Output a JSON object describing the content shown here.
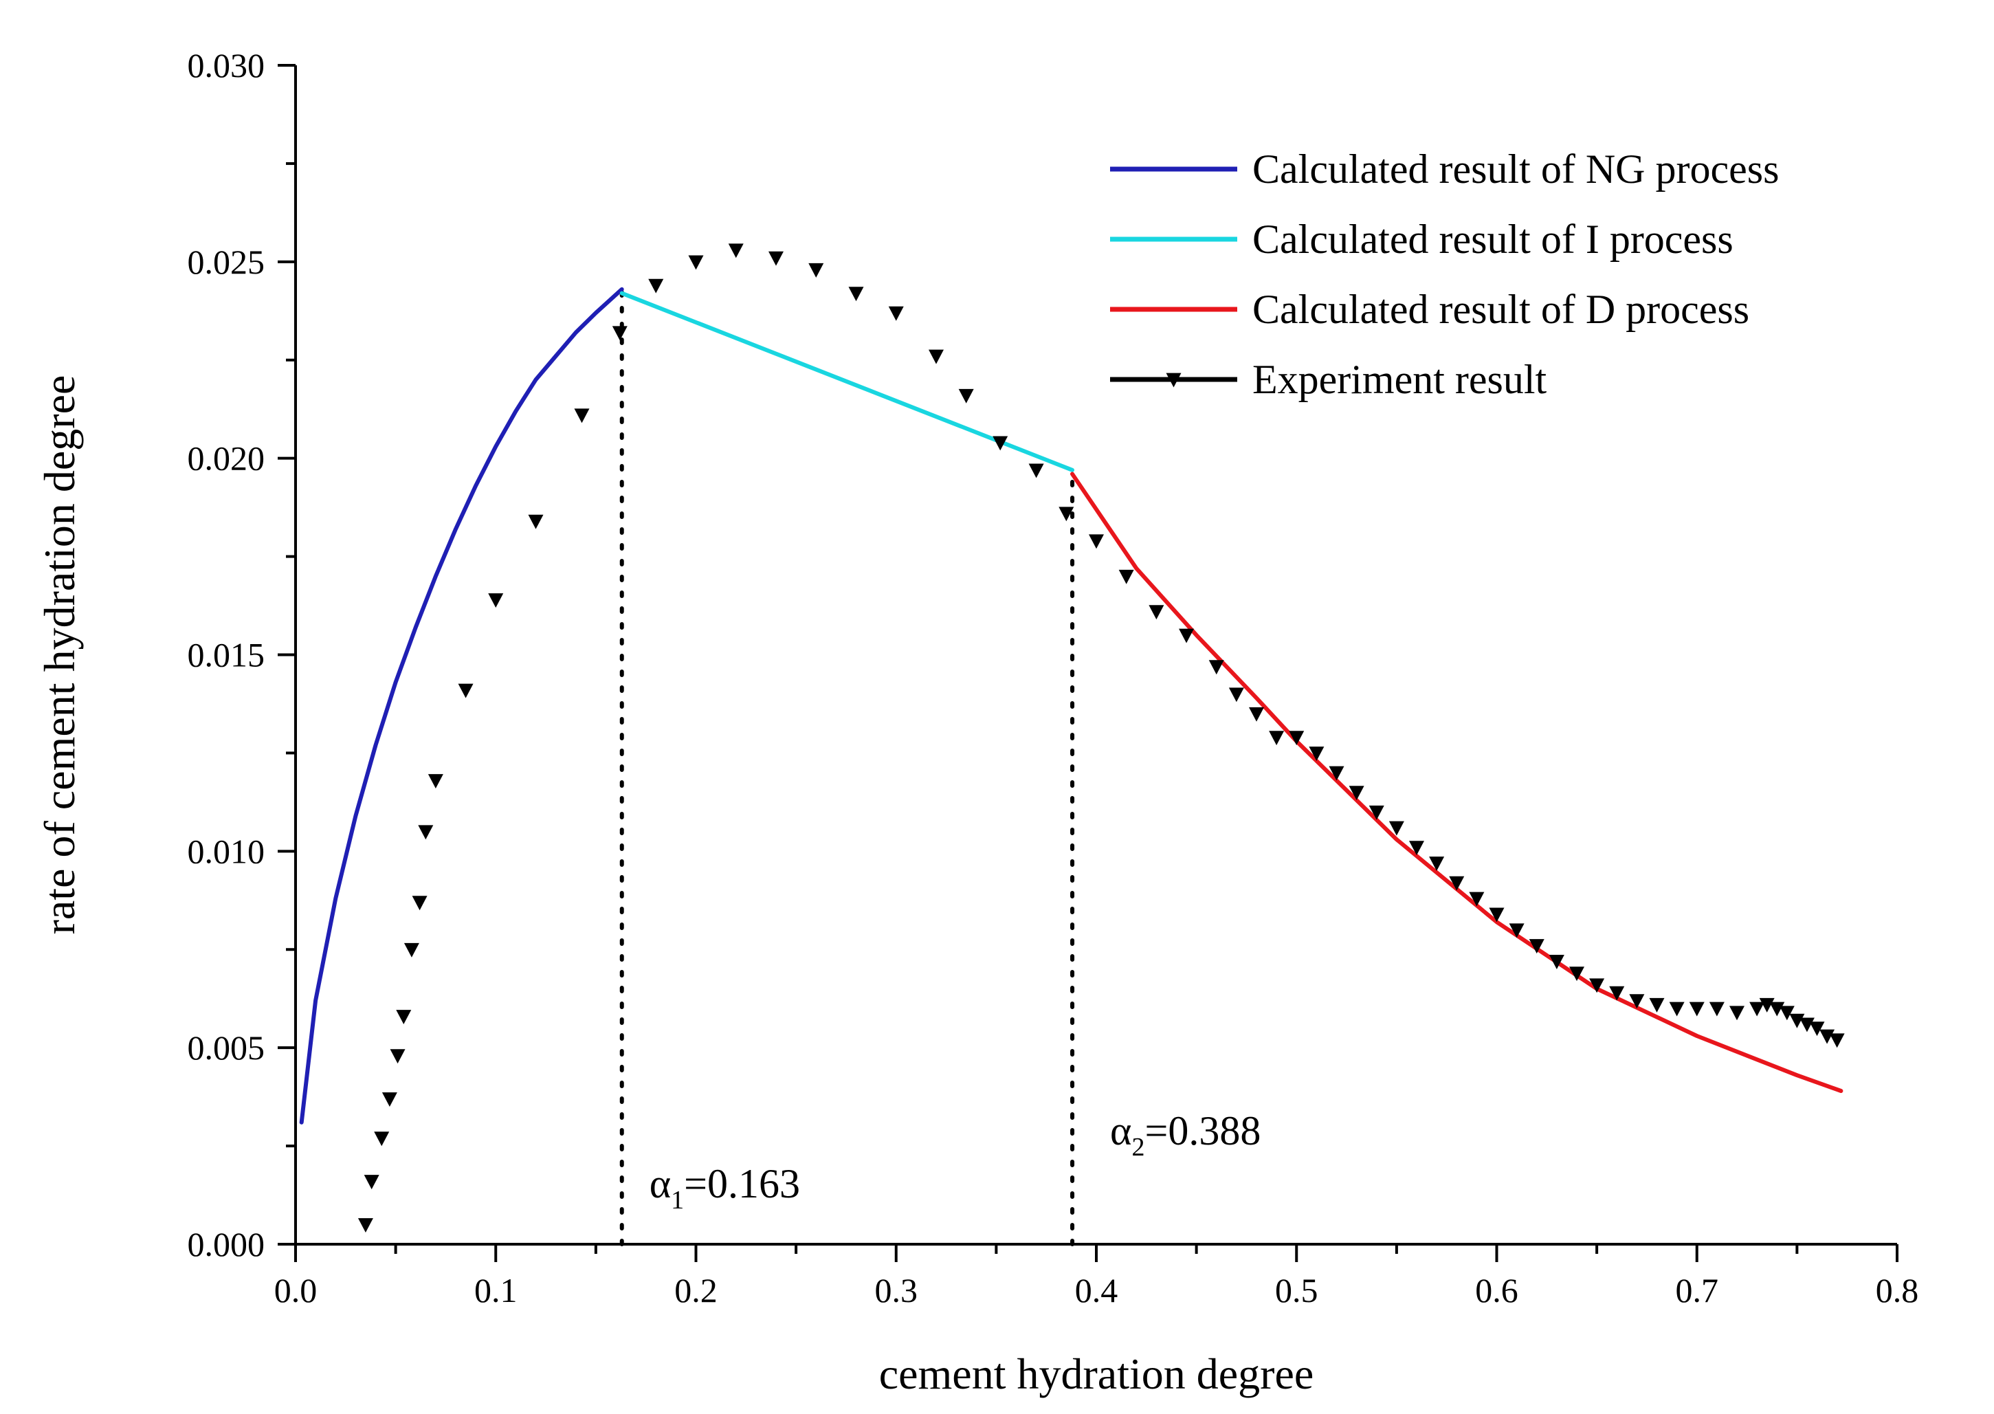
{
  "chart_data": {
    "type": "line",
    "xlabel": "cement hydration degree",
    "ylabel": "rate of cement hydration degree",
    "xlim": [
      0.0,
      0.8
    ],
    "ylim": [
      0.0,
      0.03
    ],
    "xticks": [
      0.0,
      0.1,
      0.2,
      0.3,
      0.4,
      0.5,
      0.6,
      0.7,
      0.8
    ],
    "xtick_labels": [
      "0.0",
      "0.1",
      "0.2",
      "0.3",
      "0.4",
      "0.5",
      "0.6",
      "0.7",
      "0.8"
    ],
    "yticks": [
      0.0,
      0.005,
      0.01,
      0.015,
      0.02,
      0.025,
      0.03
    ],
    "ytick_labels": [
      "0.000",
      "0.005",
      "0.010",
      "0.015",
      "0.020",
      "0.025",
      "0.030"
    ],
    "legend_position": "top-right",
    "series": [
      {
        "name": "Calculated result of NG process",
        "color": "#1f1fb4",
        "marker": "none",
        "x": [
          0.003,
          0.01,
          0.02,
          0.03,
          0.04,
          0.05,
          0.06,
          0.07,
          0.08,
          0.09,
          0.1,
          0.11,
          0.12,
          0.13,
          0.14,
          0.15,
          0.163
        ],
        "y": [
          0.0031,
          0.0062,
          0.0088,
          0.0109,
          0.0127,
          0.0143,
          0.0157,
          0.017,
          0.0182,
          0.0193,
          0.0203,
          0.0212,
          0.022,
          0.0226,
          0.0232,
          0.0237,
          0.0243
        ]
      },
      {
        "name": "Calculated result of I process",
        "color": "#19d6e0",
        "marker": "none",
        "x": [
          0.163,
          0.388
        ],
        "y": [
          0.0242,
          0.0197
        ]
      },
      {
        "name": "Calculated result of D process",
        "color": "#e8161c",
        "marker": "none",
        "x": [
          0.388,
          0.42,
          0.45,
          0.48,
          0.5,
          0.55,
          0.6,
          0.65,
          0.7,
          0.75,
          0.772
        ],
        "y": [
          0.0196,
          0.0172,
          0.0155,
          0.0139,
          0.0128,
          0.0103,
          0.0082,
          0.0065,
          0.0053,
          0.0043,
          0.0039
        ]
      },
      {
        "name": "Experiment result",
        "color": "#000000",
        "marker": "triangle-down",
        "x": [
          0.035,
          0.038,
          0.043,
          0.047,
          0.051,
          0.054,
          0.058,
          0.062,
          0.065,
          0.07,
          0.085,
          0.1,
          0.12,
          0.143,
          0.162,
          0.18,
          0.2,
          0.22,
          0.24,
          0.26,
          0.28,
          0.3,
          0.32,
          0.335,
          0.352,
          0.37,
          0.385,
          0.4,
          0.415,
          0.43,
          0.445,
          0.46,
          0.47,
          0.48,
          0.49,
          0.5,
          0.51,
          0.52,
          0.53,
          0.54,
          0.55,
          0.56,
          0.57,
          0.58,
          0.59,
          0.6,
          0.61,
          0.62,
          0.63,
          0.64,
          0.65,
          0.66,
          0.67,
          0.68,
          0.69,
          0.7,
          0.71,
          0.72,
          0.73,
          0.735,
          0.74,
          0.745,
          0.75,
          0.755,
          0.76,
          0.765,
          0.77
        ],
        "y": [
          0.0005,
          0.0016,
          0.0027,
          0.0037,
          0.0048,
          0.0058,
          0.0075,
          0.0087,
          0.0105,
          0.0118,
          0.0141,
          0.0164,
          0.0184,
          0.0211,
          0.0232,
          0.0244,
          0.025,
          0.0253,
          0.0251,
          0.0248,
          0.0242,
          0.0237,
          0.0226,
          0.0216,
          0.0204,
          0.0197,
          0.0186,
          0.0179,
          0.017,
          0.0161,
          0.0155,
          0.0147,
          0.014,
          0.0135,
          0.0129,
          0.0129,
          0.0125,
          0.012,
          0.0115,
          0.011,
          0.0106,
          0.0101,
          0.0097,
          0.0092,
          0.0088,
          0.0084,
          0.008,
          0.0076,
          0.0072,
          0.0069,
          0.0066,
          0.0064,
          0.0062,
          0.0061,
          0.006,
          0.006,
          0.006,
          0.0059,
          0.006,
          0.0061,
          0.006,
          0.0059,
          0.0057,
          0.0056,
          0.0055,
          0.0053,
          0.0052
        ]
      }
    ],
    "annotations": [
      {
        "symbol": "α",
        "subscript": "1",
        "text": "=0.163",
        "x": 0.163
      },
      {
        "symbol": "α",
        "subscript": "2",
        "text": "=0.388",
        "x": 0.388
      }
    ]
  }
}
